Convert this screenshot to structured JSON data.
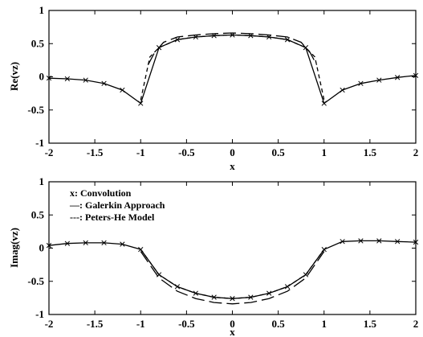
{
  "chart_data": [
    {
      "type": "line",
      "xlabel": "x",
      "ylabel": "Re(vz)",
      "xlim": [
        -2,
        2
      ],
      "ylim": [
        -1,
        1
      ],
      "xticks": [
        -2,
        -1.5,
        -1,
        -0.5,
        0,
        0.5,
        1,
        1.5,
        2
      ],
      "xtick_labels": [
        "-2",
        "-1.5",
        "-1",
        "-0.5",
        "0",
        "0.5",
        "1",
        "1.5",
        "2"
      ],
      "yticks": [
        -1,
        -0.5,
        0,
        0.5,
        1
      ],
      "ytick_labels": [
        "-1",
        "-0.5",
        "0",
        "0.5",
        "1"
      ],
      "grid": false,
      "series": [
        {
          "style": "x-markers",
          "x": [
            -2,
            -1.8,
            -1.6,
            -1.4,
            -1.2,
            -1.0,
            -0.8,
            -0.6,
            -0.4,
            -0.2,
            0,
            0.2,
            0.4,
            0.6,
            0.8,
            1.0,
            1.2,
            1.4,
            1.6,
            1.8,
            2.0
          ],
          "y": [
            -0.02,
            -0.03,
            -0.05,
            -0.1,
            -0.2,
            -0.4,
            0.44,
            0.56,
            0.6,
            0.62,
            0.63,
            0.62,
            0.6,
            0.56,
            0.44,
            -0.4,
            -0.2,
            -0.1,
            -0.05,
            -0.01,
            0.02
          ]
        },
        {
          "style": "long-dash",
          "x": [
            -0.92,
            -0.85,
            -0.75,
            -0.6,
            -0.4,
            -0.2,
            0,
            0.2,
            0.4,
            0.6,
            0.75,
            0.85,
            0.92
          ],
          "y": [
            0.18,
            0.36,
            0.52,
            0.6,
            0.63,
            0.65,
            0.66,
            0.65,
            0.63,
            0.6,
            0.52,
            0.36,
            0.18
          ]
        },
        {
          "style": "short-dash",
          "x": [
            -1,
            -0.9,
            -0.8,
            -0.6,
            -0.4,
            -0.2,
            0,
            0.2,
            0.4,
            0.6,
            0.8,
            0.9,
            1
          ],
          "y": [
            -0.35,
            0.3,
            0.44,
            0.56,
            0.6,
            0.62,
            0.63,
            0.62,
            0.6,
            0.56,
            0.44,
            0.3,
            -0.35
          ]
        }
      ]
    },
    {
      "type": "line",
      "xlabel": "x",
      "ylabel": "Imag(vz)",
      "xlim": [
        -2,
        2
      ],
      "ylim": [
        -1,
        1
      ],
      "xticks": [
        -2,
        -1.5,
        -1,
        -0.5,
        0,
        0.5,
        1,
        1.5,
        2
      ],
      "xtick_labels": [
        "-2",
        "-1.5",
        "-1",
        "-0.5",
        "0",
        "0.5",
        "1",
        "1.5",
        "2"
      ],
      "yticks": [
        -1,
        -0.5,
        0,
        0.5,
        1
      ],
      "ytick_labels": [
        "-1",
        "-0.5",
        "0",
        "0.5",
        "1"
      ],
      "grid": false,
      "legend": {
        "placement": "top-left",
        "entries": [
          "x: Convolution",
          "—: Galerkin Approach",
          "---: Peters-He Model"
        ]
      },
      "series": [
        {
          "name": "x: Convolution",
          "style": "x-markers",
          "x": [
            -2,
            -1.8,
            -1.6,
            -1.4,
            -1.2,
            -1.0,
            -0.8,
            -0.6,
            -0.4,
            -0.2,
            0,
            0.2,
            0.4,
            0.6,
            0.8,
            1.0,
            1.2,
            1.4,
            1.6,
            1.8,
            2.0
          ],
          "y": [
            0.04,
            0.07,
            0.08,
            0.08,
            0.06,
            -0.02,
            -0.4,
            -0.58,
            -0.68,
            -0.74,
            -0.76,
            -0.74,
            -0.68,
            -0.58,
            -0.4,
            -0.02,
            0.1,
            0.11,
            0.11,
            0.1,
            0.09
          ]
        },
        {
          "name": "—: Galerkin Approach",
          "style": "long-dash",
          "x": [
            -1,
            -0.8,
            -0.6,
            -0.4,
            -0.2,
            0,
            0.2,
            0.4,
            0.6,
            0.8,
            1
          ],
          "y": [
            -0.05,
            -0.45,
            -0.65,
            -0.76,
            -0.82,
            -0.84,
            -0.82,
            -0.76,
            -0.65,
            -0.45,
            -0.05
          ]
        },
        {
          "name": "---: Peters-He Model",
          "style": "short-dash",
          "x": [
            -1,
            -0.8,
            -0.6,
            -0.4,
            -0.2,
            0,
            0.2,
            0.4,
            0.6,
            0.8,
            1
          ],
          "y": [
            -0.02,
            -0.4,
            -0.58,
            -0.68,
            -0.74,
            -0.76,
            -0.74,
            -0.68,
            -0.58,
            -0.4,
            -0.02
          ]
        }
      ]
    }
  ]
}
